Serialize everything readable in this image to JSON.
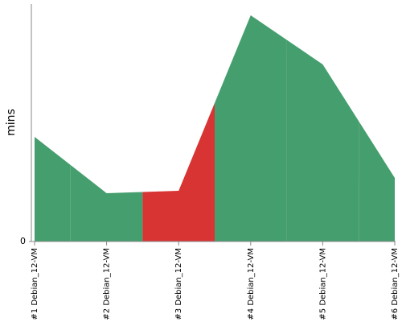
{
  "chart_data": {
    "type": "area",
    "y_label": "mins",
    "categories": [
      "#1 Debian_12-VM",
      "#2 Debian_12-VM",
      "#3 Debian_12-VM",
      "#4 Debian_12-VM",
      "#5 Debian_12-VM",
      "#6 Debian_12-VM"
    ],
    "series": [
      {
        "values": [
          1.3,
          0.6,
          0.63,
          2.81,
          2.2,
          0.79
        ],
        "colors": [
          "#459e6e",
          "#459e6e",
          "#d83434",
          "#459e6e",
          "#459e6e",
          "#459e6e"
        ]
      }
    ],
    "ylim": [
      0,
      2.95
    ],
    "yticks": [
      0
    ]
  }
}
